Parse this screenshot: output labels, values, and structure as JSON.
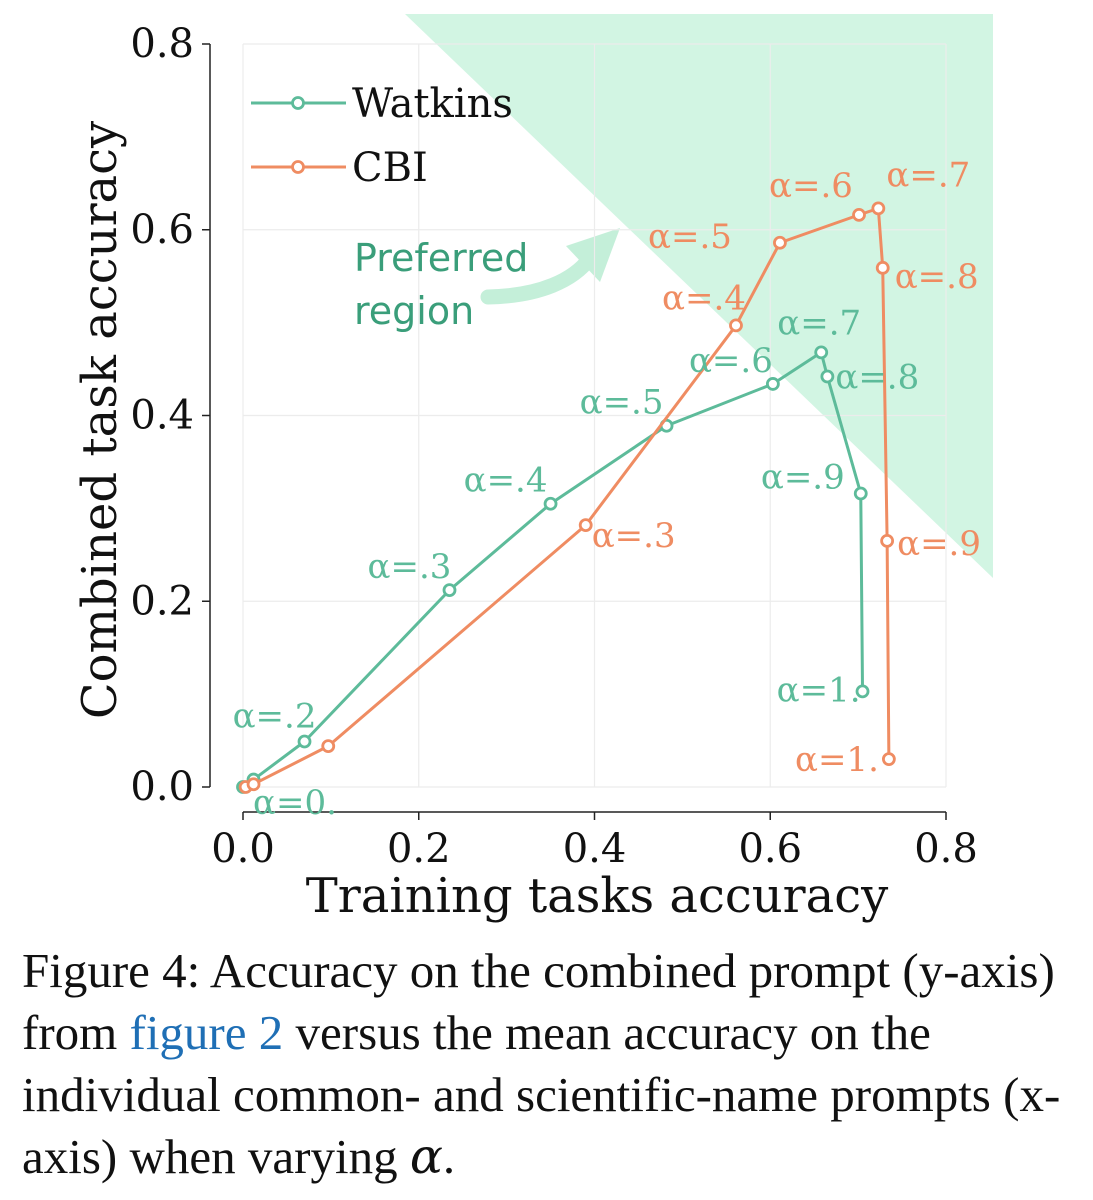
{
  "chart_data": {
    "type": "line",
    "xlabel": "Training tasks accuracy",
    "ylabel": "Combined task accuracy",
    "xlim": [
      0.0,
      0.8
    ],
    "ylim": [
      0.0,
      0.8
    ],
    "xticks": [
      "0.0",
      "0.2",
      "0.4",
      "0.6",
      "0.8"
    ],
    "yticks": [
      "0.0",
      "0.2",
      "0.4",
      "0.6",
      "0.8"
    ],
    "grid": true,
    "legend_position": "top-left",
    "region_annotation": "Preferred region",
    "region_annotation_lines": [
      "Preferred",
      "region"
    ],
    "series": [
      {
        "name": "Watkins",
        "color": "#5dbb9a",
        "points": [
          {
            "x": 0.0,
            "y": 0.0,
            "label": "α=0."
          },
          {
            "x": 0.012,
            "y": 0.008,
            "label": ""
          },
          {
            "x": 0.07,
            "y": 0.049,
            "label": "α=.2"
          },
          {
            "x": 0.235,
            "y": 0.212,
            "label": "α=.3"
          },
          {
            "x": 0.35,
            "y": 0.305,
            "label": "α=.4"
          },
          {
            "x": 0.482,
            "y": 0.389,
            "label": "α=.5"
          },
          {
            "x": 0.603,
            "y": 0.434,
            "label": "α=.6"
          },
          {
            "x": 0.658,
            "y": 0.468,
            "label": "α=.7"
          },
          {
            "x": 0.665,
            "y": 0.442,
            "label": "α=.8"
          },
          {
            "x": 0.703,
            "y": 0.316,
            "label": "α=.9"
          },
          {
            "x": 0.705,
            "y": 0.103,
            "label": "α=1."
          }
        ]
      },
      {
        "name": "CBI",
        "color": "#ef8c62",
        "points": [
          {
            "x": 0.003,
            "y": 0.0,
            "label": ""
          },
          {
            "x": 0.012,
            "y": 0.003,
            "label": ""
          },
          {
            "x": 0.097,
            "y": 0.044,
            "label": ""
          },
          {
            "x": 0.39,
            "y": 0.282,
            "label": "α=.3"
          },
          {
            "x": 0.561,
            "y": 0.497,
            "label": "α=.4"
          },
          {
            "x": 0.611,
            "y": 0.586,
            "label": "α=.5"
          },
          {
            "x": 0.701,
            "y": 0.616,
            "label": "α=.6"
          },
          {
            "x": 0.723,
            "y": 0.623,
            "label": "α=.7"
          },
          {
            "x": 0.728,
            "y": 0.559,
            "label": "α=.8"
          },
          {
            "x": 0.733,
            "y": 0.265,
            "label": "α=.9"
          },
          {
            "x": 0.735,
            "y": 0.03,
            "label": "α=1."
          }
        ]
      }
    ]
  },
  "caption": {
    "prefix": "Figure 4:  Accuracy on the combined prompt (y-axis) from ",
    "link": "figure 2",
    "middle": " versus the mean accuracy on the individual common- and scientific-name prompts (x-axis) when varying ",
    "symbol": "α",
    "suffix": "."
  },
  "colors": {
    "region_fill": "#d2f5e3",
    "region_arrow": "#c4efd9",
    "region_text": "#3a9e7a",
    "grid": "#ececec"
  }
}
